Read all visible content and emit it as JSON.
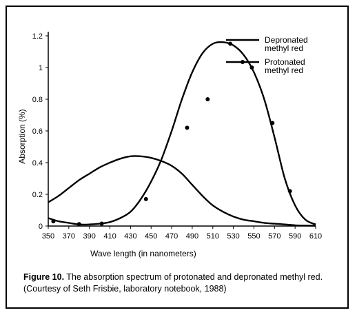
{
  "chart_data": {
    "type": "line",
    "xlabel": "Wave length (in nanometers)",
    "ylabel": "Absorption (%)",
    "xlim": [
      350,
      610
    ],
    "ylim": [
      0,
      1.2
    ],
    "x_ticks": [
      "350",
      "370",
      "390",
      "410",
      "430",
      "450",
      "470",
      "490",
      "510",
      "530",
      "550",
      "570",
      "590",
      "610"
    ],
    "y_ticks": [
      "0",
      "0.2",
      "0.4",
      "0.6",
      "0.8",
      "1",
      "1.2"
    ],
    "legend_position": "top-right",
    "grid": false,
    "series": [
      {
        "name": "Depronated methyl red",
        "marker": false,
        "x": [
          350,
          360,
          370,
          380,
          390,
          400,
          410,
          420,
          430,
          440,
          450,
          460,
          470,
          480,
          490,
          500,
          510,
          520,
          530,
          540,
          550,
          560,
          570,
          580,
          590,
          600,
          610
        ],
        "y": [
          0.15,
          0.19,
          0.24,
          0.29,
          0.33,
          0.37,
          0.4,
          0.425,
          0.44,
          0.44,
          0.43,
          0.41,
          0.38,
          0.33,
          0.26,
          0.19,
          0.13,
          0.09,
          0.06,
          0.04,
          0.03,
          0.02,
          0.015,
          0.01,
          0.005,
          0.003,
          0.002
        ]
      },
      {
        "name": "Protonated methyl red",
        "marker": true,
        "x": [
          350,
          360,
          370,
          380,
          390,
          400,
          410,
          420,
          430,
          440,
          450,
          460,
          470,
          480,
          490,
          500,
          510,
          520,
          530,
          540,
          550,
          560,
          570,
          580,
          590,
          600,
          610
        ],
        "y": [
          0.05,
          0.03,
          0.02,
          0.01,
          0.01,
          0.015,
          0.025,
          0.05,
          0.09,
          0.17,
          0.28,
          0.42,
          0.6,
          0.8,
          0.97,
          1.09,
          1.15,
          1.16,
          1.14,
          1.08,
          0.97,
          0.8,
          0.56,
          0.3,
          0.13,
          0.04,
          0.01
        ],
        "marker_x": [
          355,
          380,
          402,
          445,
          485,
          505,
          527,
          548,
          568,
          585
        ],
        "marker_y": [
          0.03,
          0.012,
          0.015,
          0.17,
          0.62,
          0.8,
          1.15,
          1.0,
          0.65,
          0.22
        ]
      }
    ]
  },
  "caption": {
    "label": "Figure 10.",
    "text": "The absorption spectrum of protonated and depronated methyl red. (Courtesy of Seth Frisbie, laboratory notebook, 1988)"
  }
}
